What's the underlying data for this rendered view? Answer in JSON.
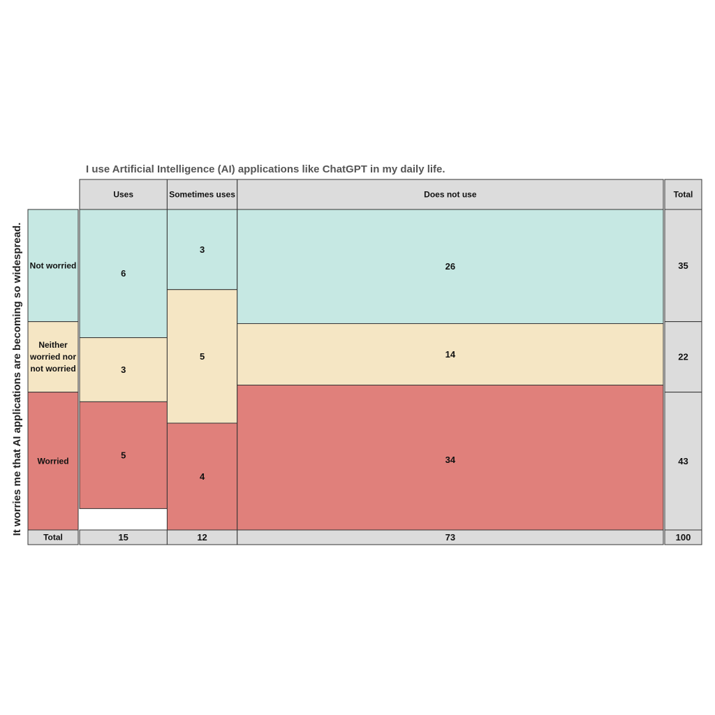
{
  "chart_data": {
    "type": "mosaic",
    "title": "I use Artificial Intelligence (AI) applications like ChatGPT in my daily life.",
    "ylabel": "It worries me that AI applications are becoming so widespread.",
    "columns": [
      "Uses",
      "Sometimes uses",
      "Does not use"
    ],
    "rows": [
      {
        "label": "Not worried",
        "color": "#c6e8e3"
      },
      {
        "label": "Neither worried nor not worried",
        "color": "#f5e6c4"
      },
      {
        "label": "Worried",
        "color": "#e0807b"
      }
    ],
    "values": [
      [
        6,
        3,
        26
      ],
      [
        3,
        5,
        14
      ],
      [
        5,
        4,
        34
      ]
    ],
    "column_totals": [
      15,
      12,
      73
    ],
    "row_totals": [
      35,
      22,
      43
    ],
    "total_label": "Total",
    "grand_total": 100,
    "header_color": "#dcdcdc",
    "border_color": "#333333"
  }
}
